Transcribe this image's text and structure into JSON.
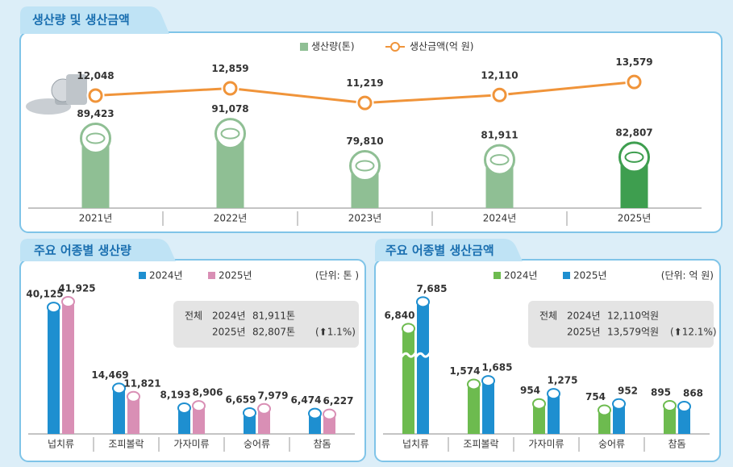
{
  "chart_data": [
    {
      "type": "combo",
      "title": "생산량 및 생산금액",
      "categories": [
        "2021년",
        "2022년",
        "2023년",
        "2024년",
        "2025년"
      ],
      "series": [
        {
          "name": "생산량(톤)",
          "type": "bar",
          "color": "#8fbf94",
          "colors": [
            "#8fbf94",
            "#8fbf94",
            "#8fbf94",
            "#8fbf94",
            "#3e9e4f"
          ],
          "label_color": "#3f8f4a",
          "values": [
            89423,
            91078,
            79810,
            81911,
            82807
          ],
          "value_labels": [
            "89,423",
            "91,078",
            "79,810",
            "81,911",
            "82,807"
          ]
        },
        {
          "name": "생산금액(억 원)",
          "type": "line",
          "axis": "y2",
          "color": "#f0943a",
          "label_color": "#ee8a2a",
          "values": [
            12048,
            12859,
            11219,
            12110,
            13579
          ],
          "value_labels": [
            "12,048",
            "12,859",
            "11,219",
            "12,110",
            "13,579"
          ]
        }
      ],
      "ylim": [
        65000,
        100000
      ],
      "y2lim": [
        10000,
        15000
      ]
    },
    {
      "type": "bar",
      "title": "주요 어종별 생산량",
      "unit": "(단위: 톤 )",
      "categories": [
        "넙치류",
        "조피볼락",
        "가자미류",
        "숭어류",
        "참돔"
      ],
      "series": [
        {
          "name": "2024년",
          "color": "#1e8fd0",
          "label_color": "#1a6fb0",
          "values": [
            40125,
            14469,
            8193,
            6659,
            6474
          ],
          "value_labels": [
            "40,125",
            "14,469",
            "8,193",
            "6,659",
            "6,474"
          ]
        },
        {
          "name": "2025년",
          "color": "#d98fb5",
          "label_color": "#b84a6a",
          "values": [
            41925,
            11821,
            8906,
            7979,
            6227
          ],
          "value_labels": [
            "41,925",
            "11,821",
            "8,906",
            "7,979",
            "6,227"
          ]
        }
      ],
      "ylim": [
        0,
        45000
      ],
      "summary": {
        "label": "전체",
        "rows": [
          {
            "year": "2024년",
            "value": "81,911톤"
          },
          {
            "year": "2025년",
            "value": "82,807톤",
            "change": "(⬆1.1%)"
          }
        ]
      }
    },
    {
      "type": "bar",
      "title": "주요 어종별 생산금액",
      "unit": "(단위: 억 원)",
      "categories": [
        "넙치류",
        "조피볼락",
        "가자미류",
        "숭어류",
        "참돔"
      ],
      "series": [
        {
          "name": "2024년",
          "color": "#6dbb4f",
          "label_color": "#3f8f3a",
          "values": [
            6840,
            1574,
            954,
            754,
            895
          ],
          "value_labels": [
            "6,840",
            "1,574",
            "954",
            "754",
            "895"
          ]
        },
        {
          "name": "2025년",
          "color": "#1e8fd0",
          "label_color": "#1a6fb0",
          "values": [
            7685,
            1685,
            1275,
            952,
            868
          ],
          "value_labels": [
            "7,685",
            "1,685",
            "1,275",
            "952",
            "868"
          ]
        }
      ],
      "ylim": [
        0,
        8000
      ],
      "axis_break": [
        2500,
        6000
      ],
      "summary": {
        "label": "전체",
        "rows": [
          {
            "year": "2024년",
            "value": "12,110억원"
          },
          {
            "year": "2025년",
            "value": "13,579억원",
            "change": "(⬆12.1%)"
          }
        ]
      }
    }
  ]
}
